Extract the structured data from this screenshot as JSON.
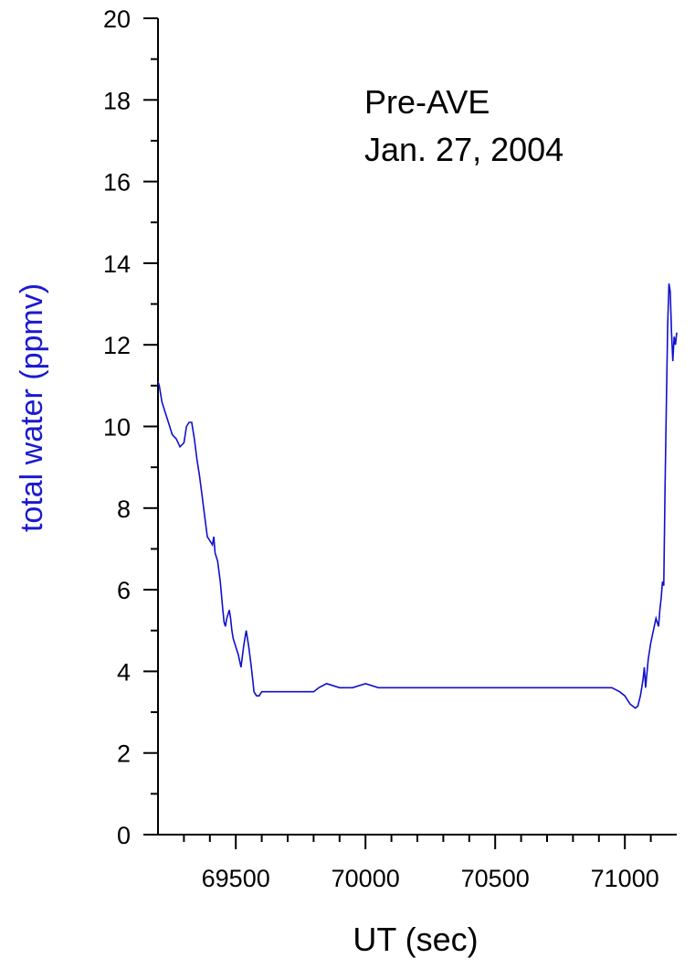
{
  "chart_data": {
    "type": "line",
    "xlabel": "UT (sec)",
    "ylabel": "total water (ppmv)",
    "annotations": [
      "Pre-AVE",
      "Jan. 27, 2004"
    ],
    "xlim": [
      69200,
      71200
    ],
    "ylim": [
      0,
      20
    ],
    "x_ticks": [
      69500,
      70000,
      70500,
      71000
    ],
    "y_ticks": [
      0,
      2,
      4,
      6,
      8,
      10,
      12,
      14,
      16,
      18,
      20
    ],
    "grid": false,
    "colors": {
      "series": "#1010cc",
      "ylabel": "#1a1ad0",
      "axis": "#000000"
    },
    "series": [
      {
        "x": [
          69200,
          69205,
          69215,
          69225,
          69240,
          69255,
          69270,
          69285,
          69300,
          69310,
          69320,
          69330,
          69340,
          69350,
          69360,
          69370,
          69380,
          69390,
          69400,
          69410,
          69415,
          69420,
          69430,
          69440,
          69450,
          69455,
          69460,
          69465,
          69470,
          69475,
          69480,
          69485,
          69490,
          69495,
          69500,
          69510,
          69520,
          69530,
          69535,
          69540,
          69550,
          69560,
          69565,
          69570,
          69580,
          69590,
          69600,
          69620,
          69650,
          69700,
          69750,
          69800,
          69820,
          69850,
          69900,
          69950,
          70000,
          70050,
          70100,
          70150,
          70200,
          70250,
          70300,
          70350,
          70400,
          70450,
          70500,
          70550,
          70600,
          70650,
          70700,
          70750,
          70800,
          70850,
          70900,
          70950,
          70980,
          71000,
          71010,
          71020,
          71030,
          71040,
          71050,
          71060,
          71065,
          71070,
          71075,
          71080,
          71090,
          71100,
          71110,
          71120,
          71130,
          71135,
          71140,
          71145,
          71150,
          71155,
          71160,
          71165,
          71170,
          71175,
          71180,
          71185,
          71190,
          71195,
          71200
        ],
        "y": [
          11.1,
          11.0,
          10.6,
          10.4,
          10.1,
          9.8,
          9.7,
          9.5,
          9.6,
          10.0,
          10.1,
          10.1,
          9.7,
          9.2,
          8.8,
          8.3,
          7.8,
          7.3,
          7.2,
          7.1,
          7.3,
          6.9,
          6.7,
          6.2,
          5.5,
          5.2,
          5.1,
          5.3,
          5.4,
          5.5,
          5.3,
          5.0,
          4.8,
          4.7,
          4.6,
          4.4,
          4.1,
          4.6,
          4.8,
          5.0,
          4.6,
          4.1,
          3.8,
          3.5,
          3.4,
          3.4,
          3.5,
          3.5,
          3.5,
          3.5,
          3.5,
          3.5,
          3.6,
          3.7,
          3.6,
          3.6,
          3.7,
          3.6,
          3.6,
          3.6,
          3.6,
          3.6,
          3.6,
          3.6,
          3.6,
          3.6,
          3.6,
          3.6,
          3.6,
          3.6,
          3.6,
          3.6,
          3.6,
          3.6,
          3.6,
          3.6,
          3.5,
          3.4,
          3.3,
          3.2,
          3.15,
          3.1,
          3.15,
          3.4,
          3.6,
          3.8,
          4.1,
          3.6,
          4.3,
          4.7,
          5.0,
          5.3,
          5.1,
          5.5,
          5.8,
          6.2,
          6.1,
          8.5,
          10.5,
          12.5,
          13.5,
          13.3,
          12.3,
          11.6,
          12.2,
          12.0,
          12.3
        ]
      }
    ]
  }
}
